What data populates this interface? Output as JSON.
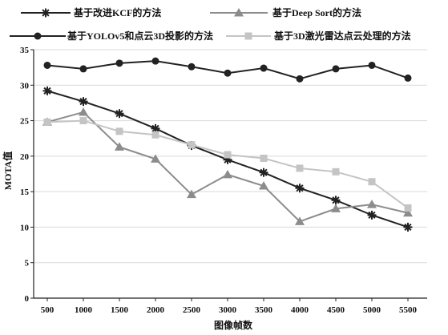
{
  "chart_data": {
    "type": "line",
    "title": "",
    "xlabel": "图像帧数",
    "ylabel": "MOTA值",
    "x": [
      500,
      1000,
      1500,
      2000,
      2500,
      3000,
      3500,
      4000,
      4500,
      5000,
      5500
    ],
    "ylim": [
      0,
      35
    ],
    "y_ticks": [
      0,
      5,
      10,
      15,
      20,
      25,
      30,
      35
    ],
    "grid": true,
    "legend_position": "top",
    "series": [
      {
        "name": "基于改进KCF的方法",
        "color": "#222222",
        "marker": "asterisk",
        "values": [
          29.2,
          27.7,
          26.0,
          23.9,
          21.5,
          19.5,
          17.7,
          15.5,
          13.8,
          11.7,
          10.0
        ]
      },
      {
        "name": "基于Deep Sort的方法",
        "color": "#8c8c8c",
        "marker": "triangle",
        "values": [
          24.8,
          26.2,
          21.3,
          19.6,
          14.6,
          17.4,
          15.8,
          10.8,
          12.6,
          13.2,
          12.0
        ]
      },
      {
        "name": "基于YOLOv5和点云3D投影的方法",
        "color": "#222222",
        "marker": "circle",
        "values": [
          32.8,
          32.3,
          33.1,
          33.4,
          32.6,
          31.7,
          32.4,
          30.9,
          32.3,
          32.8,
          31.0
        ]
      },
      {
        "name": "基于3D激光雷达点云处理的方法",
        "color": "#c4c4c4",
        "marker": "square",
        "values": [
          24.8,
          25.0,
          23.5,
          23.0,
          21.6,
          20.2,
          19.7,
          18.3,
          17.8,
          16.4,
          12.7
        ]
      }
    ]
  },
  "legend": {
    "items": [
      {
        "label": "基于改进KCF的方法"
      },
      {
        "label": "基于Deep Sort的方法"
      },
      {
        "label": "基于YOLOv5和点云3D投影的方法"
      },
      {
        "label": "基于3D激光雷达点云处理的方法"
      }
    ]
  }
}
